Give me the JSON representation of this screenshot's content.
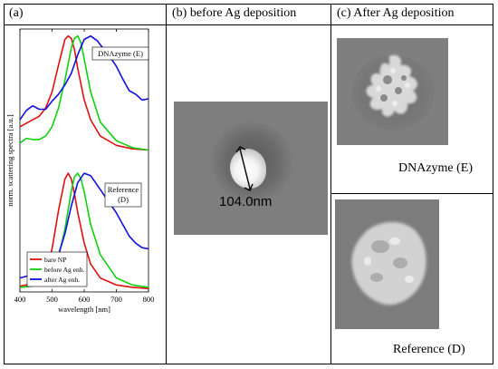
{
  "panels": {
    "a": {
      "caption": "(a)"
    },
    "b": {
      "caption": "(b) before Ag deposition",
      "scale_label": "104.0nm"
    },
    "c": {
      "caption": "(c) After Ag deposition",
      "top_label": "DNAzyme (E)",
      "bottom_label": "Reference (D)"
    }
  },
  "chart_data": {
    "type": "line",
    "xlabel": "wavelength [nm]",
    "ylabel": "norm. scattering spectra [a.u.]",
    "xlim": [
      400,
      800
    ],
    "xticks": [
      400,
      500,
      600,
      700,
      800
    ],
    "annotations": [
      {
        "text_lines": [
          "DNAzyme (E)"
        ]
      },
      {
        "text_lines": [
          "Reference",
          "(D)"
        ]
      }
    ],
    "legend": {
      "position": "bottom-left",
      "entries": [
        {
          "name": "bare NP",
          "color": "#e01010"
        },
        {
          "name": "before Ag enh.",
          "color": "#10d010"
        },
        {
          "name": "after Ag enh.",
          "color": "#1010e0"
        }
      ]
    },
    "groups": [
      {
        "name": "DNAzyme (E)",
        "offset": 1.18,
        "series": [
          {
            "name": "bare NP",
            "color": "#e01010",
            "x": [
              400,
              420,
              440,
              460,
              480,
              500,
              520,
              540,
              550,
              560,
              570,
              580,
              600,
              620,
              650,
              700,
              750,
              800
            ],
            "y": [
              0.22,
              0.25,
              0.28,
              0.31,
              0.38,
              0.52,
              0.75,
              0.97,
              1.0,
              0.98,
              0.88,
              0.72,
              0.45,
              0.28,
              0.14,
              0.06,
              0.03,
              0.02
            ]
          },
          {
            "name": "before Ag enh.",
            "color": "#10d010",
            "x": [
              400,
              420,
              440,
              460,
              480,
              500,
              520,
              540,
              560,
              570,
              580,
              590,
              600,
              620,
              650,
              700,
              750,
              800
            ],
            "y": [
              0.08,
              0.12,
              0.11,
              0.11,
              0.14,
              0.22,
              0.38,
              0.62,
              0.9,
              0.98,
              1.0,
              0.94,
              0.8,
              0.52,
              0.26,
              0.1,
              0.04,
              0.02
            ]
          },
          {
            "name": "after Ag enh.",
            "color": "#1010e0",
            "x": [
              400,
              420,
              440,
              460,
              480,
              500,
              520,
              540,
              560,
              580,
              600,
              620,
              640,
              660,
              680,
              700,
              720,
              740,
              760,
              780,
              800
            ],
            "y": [
              0.28,
              0.36,
              0.4,
              0.37,
              0.37,
              0.44,
              0.5,
              0.58,
              0.68,
              0.84,
              0.97,
              1.0,
              0.96,
              0.89,
              0.82,
              0.74,
              0.63,
              0.53,
              0.5,
              0.45,
              0.46
            ]
          }
        ]
      },
      {
        "name": "Reference (D)",
        "offset": 0.0,
        "series": [
          {
            "name": "bare NP",
            "color": "#e01010",
            "x": [
              400,
              440,
              480,
              500,
              520,
              540,
              550,
              560,
              570,
              580,
              600,
              620,
              650,
              700,
              750,
              800
            ],
            "y": [
              0.03,
              0.05,
              0.15,
              0.35,
              0.68,
              0.95,
              1.0,
              0.95,
              0.82,
              0.66,
              0.4,
              0.22,
              0.1,
              0.04,
              0.02,
              0.01
            ]
          },
          {
            "name": "before Ag enh.",
            "color": "#10d010",
            "x": [
              400,
              440,
              480,
              500,
              520,
              540,
              560,
              570,
              580,
              590,
              600,
              620,
              650,
              700,
              750,
              800
            ],
            "y": [
              0.02,
              0.03,
              0.07,
              0.13,
              0.28,
              0.52,
              0.85,
              0.97,
              1.0,
              0.95,
              0.84,
              0.56,
              0.3,
              0.1,
              0.04,
              0.02
            ]
          },
          {
            "name": "after Ag enh.",
            "color": "#1010e0",
            "x": [
              400,
              440,
              480,
              500,
              520,
              540,
              560,
              580,
              600,
              620,
              640,
              660,
              680,
              700,
              720,
              740,
              760,
              780,
              800
            ],
            "y": [
              0.1,
              0.13,
              0.16,
              0.2,
              0.3,
              0.48,
              0.72,
              0.92,
              1.0,
              0.98,
              0.9,
              0.82,
              0.74,
              0.66,
              0.56,
              0.46,
              0.4,
              0.36,
              0.35
            ]
          }
        ]
      }
    ]
  }
}
